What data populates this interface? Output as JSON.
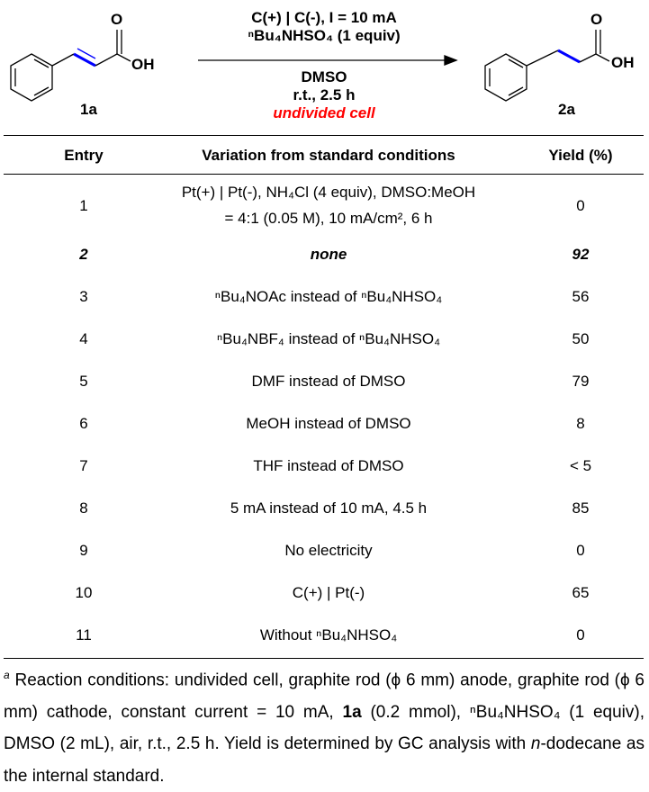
{
  "scheme": {
    "reactant_label": "1a",
    "product_label": "2a",
    "reactant_oh": "OH",
    "reactant_o": "O",
    "product_oh": "OH",
    "product_o": "O",
    "conditions_above": [
      "C(+) | C(-), I = 10 mA",
      "ⁿBu₄NHSO₄ (1 equiv)"
    ],
    "conditions_below": [
      "DMSO",
      "r.t., 2.5 h"
    ],
    "cell_note": "undivided cell",
    "highlight_color": "#0000ff",
    "note_color": "#ff0000"
  },
  "table": {
    "headers": [
      "Entry",
      "Variation from standard conditions",
      "Yield (%)"
    ],
    "rows": [
      {
        "entry": "1",
        "variation": "Pt(+) | Pt(-), NH₄Cl (4 equiv), DMSO:MeOH",
        "variation2": "= 4:1 (0.05 M), 10 mA/cm², 6 h",
        "yield": "0"
      },
      {
        "entry": "2",
        "variation": "none",
        "yield": "92"
      },
      {
        "entry": "3",
        "variation": "ⁿBu₄NOAc instead of ⁿBu₄NHSO₄",
        "yield": "56"
      },
      {
        "entry": "4",
        "variation": "ⁿBu₄NBF₄ instead of ⁿBu₄NHSO₄",
        "yield": "50"
      },
      {
        "entry": "5",
        "variation": "DMF instead of DMSO",
        "yield": "79"
      },
      {
        "entry": "6",
        "variation": "MeOH instead of DMSO",
        "yield": "8"
      },
      {
        "entry": "7",
        "variation": "THF instead of DMSO",
        "yield": "< 5"
      },
      {
        "entry": "8",
        "variation": "5 mA instead of 10 mA, 4.5 h",
        "yield": "85"
      },
      {
        "entry": "9",
        "variation": "No electricity",
        "yield": "0"
      },
      {
        "entry": "10",
        "variation": "C(+) | Pt(-)",
        "yield": "65"
      },
      {
        "entry": "11",
        "variation": "Without ⁿBu₄NHSO₄",
        "yield": "0"
      }
    ]
  },
  "footnote": {
    "marker": "a",
    "part1": " Reaction conditions: undivided cell, graphite rod (ϕ 6 mm) anode, graphite rod (ϕ 6 mm) cathode, constant current = 10 mA, ",
    "bold": "1a",
    "part2": " (0.2 mmol), ⁿBu₄NHSO₄ (1 equiv), DMSO (2 mL), air, r.t., 2.5 h.  Yield is determined by GC analysis with ",
    "italic": "n",
    "part3": "-dodecane as the internal standard."
  }
}
